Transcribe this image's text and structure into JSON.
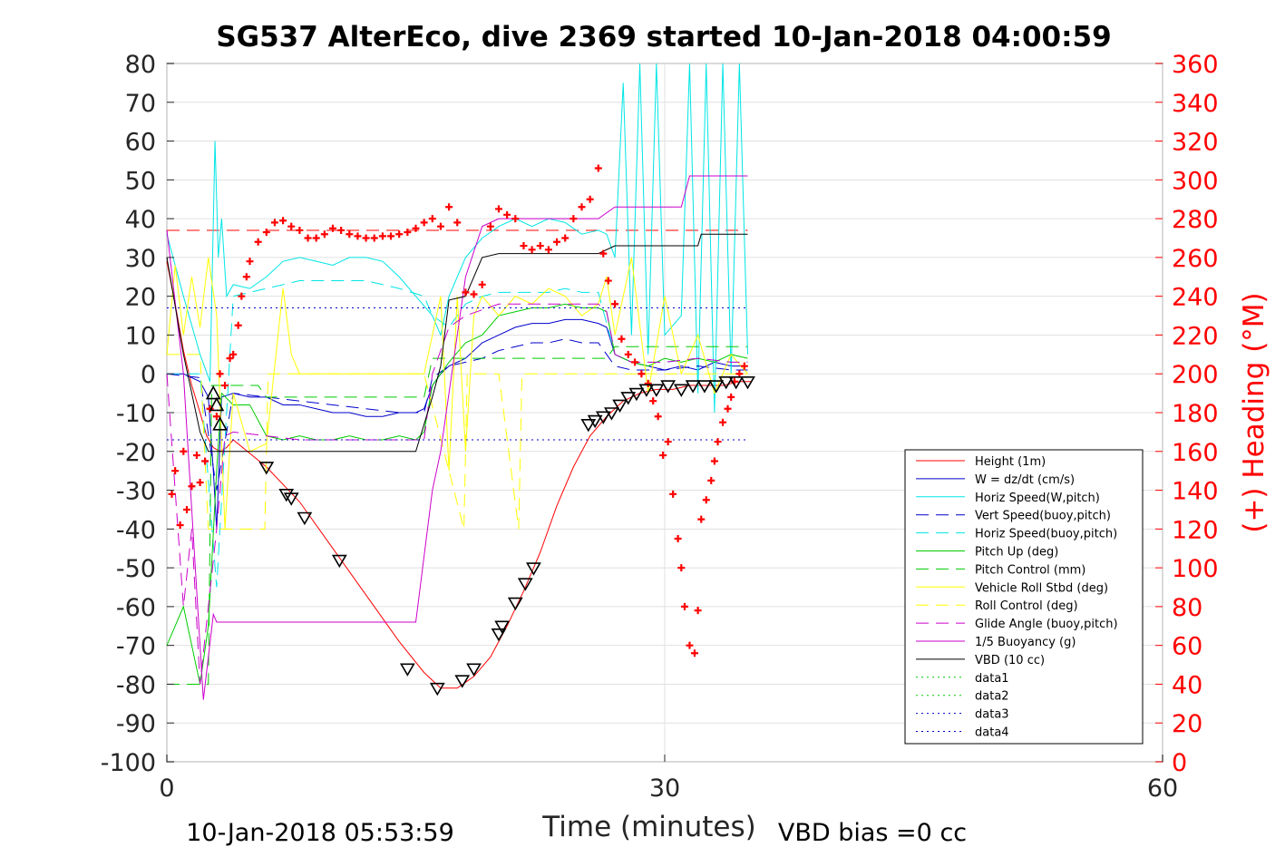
{
  "chart_data": {
    "type": "line",
    "title": "SG537 AlterEco, dive 2369 started 10-Jan-2018 04:00:59",
    "xlabel": "Time (minutes)",
    "ylabel_right": "(+) Heading (°M)",
    "footer_left": "10-Jan-2018 05:53:59",
    "footer_right": "VBD bias =0 cc",
    "xlim": [
      0,
      60
    ],
    "ylim": [
      -100,
      80
    ],
    "ylim_right": [
      0,
      360
    ],
    "x_ticks": [
      "0",
      "30",
      "60"
    ],
    "y_ticks": [
      "80",
      "70",
      "60",
      "50",
      "40",
      "30",
      "20",
      "10",
      "0",
      "-10",
      "-20",
      "-30",
      "-40",
      "-50",
      "-60",
      "-70",
      "-80",
      "-90",
      "-100"
    ],
    "y_right_ticks": [
      "360",
      "340",
      "320",
      "300",
      "280",
      "260",
      "240",
      "220",
      "200",
      "180",
      "160",
      "140",
      "120",
      "100",
      "80",
      "60",
      "40",
      "20",
      "0"
    ],
    "grid": true,
    "legend_position": "lower-right",
    "colors": {
      "height": "#ff0000",
      "w": "#0000cc",
      "horiz": "#00e5e5",
      "vert_buoy": "#0000cc",
      "horiz_buoy": "#00e5e5",
      "pitch_up": "#00cc00",
      "pitch_ctrl": "#00cc00",
      "roll": "#ffff00",
      "roll_ctrl": "#ffff00",
      "glide": "#cc00cc",
      "buoyancy": "#cc00cc",
      "vbd": "#000000",
      "data1": "#00cc00",
      "data2": "#00cc00",
      "data3": "#0000cc",
      "data4": "#0000cc",
      "heading": "#ff0000"
    },
    "series": [
      {
        "name": "Height (1m)",
        "key": "height",
        "style": "solid",
        "x": [
          0,
          0.5,
          1.0,
          1.5,
          2.0,
          2.4,
          2.8,
          3.2,
          3.6,
          4,
          6,
          8,
          10,
          12,
          14,
          15.5,
          16.5,
          17.5,
          18.5,
          19.5,
          20.5,
          21.5,
          22.5,
          23.5,
          24.5,
          25.5,
          26.5,
          27.5,
          28.5,
          29.5,
          30.5,
          31.5,
          32.5,
          33.5,
          34.5,
          35.2
        ],
        "y": [
          29,
          18,
          6,
          -3,
          -10,
          -16,
          -19,
          -20,
          -19,
          -17,
          -24,
          -33,
          -45,
          -57,
          -69,
          -77,
          -81,
          -81,
          -78,
          -73,
          -65,
          -56,
          -46,
          -34,
          -24,
          -16,
          -11,
          -7,
          -5,
          -4,
          -4,
          -3,
          -3,
          -3,
          -2,
          -2
        ]
      },
      {
        "name": "W = dz/dt (cm/s)",
        "key": "w",
        "style": "solid",
        "x": [
          0,
          1,
          2,
          2.5,
          2.8,
          3.0,
          3.3,
          4,
          5,
          6,
          7,
          8,
          9,
          10,
          11,
          12,
          13,
          14,
          15,
          15.5,
          16,
          16.5,
          17,
          17.5,
          18,
          19,
          20,
          21,
          22,
          23,
          24,
          25,
          26,
          26.5,
          27,
          28,
          29,
          30,
          31,
          32,
          33,
          34,
          35
        ],
        "y": [
          0,
          0,
          -2,
          -6,
          -25,
          -40,
          -6,
          -5,
          -6,
          -6,
          -8,
          -8,
          -9,
          -10,
          -10,
          -11,
          -11,
          -10,
          -10,
          -9,
          -3,
          0,
          2,
          3,
          4,
          8,
          10,
          12,
          13,
          13,
          14,
          14,
          13,
          12,
          5,
          3,
          2,
          1,
          2,
          1,
          3,
          2,
          2
        ]
      },
      {
        "name": "Horiz Speed(W,pitch)",
        "key": "horiz",
        "style": "solid",
        "x": [
          0,
          1,
          2,
          2.6,
          2.9,
          3.1,
          3.3,
          3.6,
          4,
          5,
          6,
          7,
          8,
          9,
          10,
          11,
          12,
          13,
          14,
          15,
          16,
          16.5,
          17,
          18,
          19,
          20,
          21,
          22,
          23,
          24,
          25,
          26,
          26.5,
          27,
          27.5,
          28,
          28.5,
          29,
          29.5,
          30,
          31,
          31.5,
          32,
          32.5,
          33,
          33.5,
          34,
          34.5,
          35
        ],
        "y": [
          36,
          20,
          5,
          -2,
          60,
          30,
          40,
          20,
          23,
          22,
          25,
          29,
          30,
          29,
          28,
          30,
          30,
          29,
          25,
          20,
          15,
          10,
          20,
          30,
          35,
          38,
          40,
          38,
          40,
          39,
          36,
          37,
          36,
          30,
          75,
          10,
          80,
          5,
          80,
          10,
          15,
          80,
          -5,
          80,
          -10,
          80,
          0,
          80,
          5
        ]
      },
      {
        "name": "Vert Speed(buoy,pitch)",
        "key": "vert_buoy",
        "style": "dashed",
        "x": [
          0,
          2,
          3,
          4,
          6,
          8,
          10,
          12,
          14,
          15.5,
          16,
          17,
          18,
          19,
          20,
          21,
          22,
          23,
          24,
          25,
          26,
          27,
          28,
          30,
          32,
          34,
          35
        ],
        "y": [
          0,
          -1,
          -30,
          -5,
          -6,
          -7,
          -8,
          -9,
          -10,
          -10,
          -1,
          2,
          3,
          4,
          6,
          7,
          8,
          8,
          9,
          8,
          8,
          2,
          1,
          1,
          2,
          1,
          1
        ]
      },
      {
        "name": "Horiz Speed(buoy,pitch)",
        "key": "horiz_buoy",
        "style": "dashed",
        "x": [
          0,
          2,
          3,
          4,
          6,
          8,
          10,
          12,
          14,
          15.5,
          16,
          17,
          18,
          19,
          20,
          21,
          22,
          23,
          24,
          25,
          26,
          27,
          28,
          30,
          32,
          34,
          35
        ],
        "y": [
          0,
          0,
          -55,
          20,
          22,
          24,
          24,
          24,
          22,
          20,
          15,
          12,
          18,
          20,
          21,
          21,
          21,
          21,
          22,
          21,
          21,
          5,
          3,
          3,
          4,
          3,
          3
        ]
      },
      {
        "name": "Pitch Up (deg)",
        "key": "pitch_up",
        "style": "solid",
        "x": [
          0,
          1,
          2,
          2.5,
          3.0,
          3.3,
          4,
          5,
          6,
          7,
          8,
          9,
          10,
          11,
          12,
          13,
          14,
          15,
          15.5,
          16,
          16.5,
          17,
          18,
          19,
          20,
          21,
          22,
          23,
          24,
          25,
          26,
          26.5,
          27,
          28,
          29,
          30,
          31,
          32,
          33,
          34,
          35
        ],
        "y": [
          -70,
          -60,
          -80,
          -65,
          -25,
          -5,
          -8,
          -8,
          -16,
          -17,
          -16,
          -17,
          -17,
          -16,
          -17,
          -17,
          -16,
          -17,
          -15,
          -3,
          0,
          3,
          8,
          10,
          15,
          16,
          17,
          17,
          18,
          17,
          17,
          16,
          5,
          3,
          2,
          4,
          3,
          4,
          3,
          5,
          4
        ]
      },
      {
        "name": "Pitch Control (mm)",
        "key": "pitch_ctrl",
        "style": "dashed",
        "x": [
          0,
          2.5,
          2.7,
          4,
          5.5,
          6,
          8,
          10,
          12,
          14,
          15.5,
          16,
          18,
          20,
          21,
          26.5,
          27,
          30,
          35
        ],
        "y": [
          -80,
          -80,
          -3,
          -3,
          -3,
          -6,
          -6,
          -6,
          -6,
          -6,
          -6,
          4,
          4,
          4,
          4,
          4,
          7,
          7,
          7
        ]
      },
      {
        "name": "Vehicle Roll Stbd (deg)",
        "key": "roll",
        "style": "solid",
        "x": [
          0,
          0.5,
          1,
          1.5,
          2,
          2.5,
          3,
          3.5,
          4,
          5,
          6,
          7,
          7.5,
          8,
          8.5,
          9,
          10,
          12,
          14,
          15.5,
          16,
          16.5,
          17,
          17.5,
          18,
          18.5,
          19,
          20,
          21,
          22,
          23,
          24,
          25,
          26,
          26.5,
          27,
          28,
          29,
          30,
          31,
          32,
          33,
          34,
          35
        ],
        "y": [
          5,
          28,
          10,
          25,
          12,
          30,
          15,
          -40,
          -5,
          -20,
          -18,
          22,
          5,
          0,
          0,
          0,
          0,
          0,
          0,
          0,
          10,
          20,
          -25,
          20,
          -20,
          15,
          20,
          15,
          20,
          18,
          22,
          20,
          15,
          18,
          25,
          10,
          30,
          -5,
          20,
          0,
          10,
          -5,
          5,
          0
        ]
      },
      {
        "name": "Roll Control (deg)",
        "key": "roll_ctrl",
        "style": "dashed",
        "x": [
          0,
          2,
          2.5,
          3,
          4,
          5,
          5.9,
          6.1,
          7,
          8,
          10,
          12,
          14,
          15.5,
          17.9,
          18.1,
          20,
          21.2,
          21.4,
          22,
          24,
          26,
          28,
          30,
          32,
          34,
          35
        ],
        "y": [
          5,
          5,
          -40,
          -40,
          -40,
          -40,
          -40,
          0,
          0,
          0,
          0,
          0,
          0,
          0,
          -40,
          0,
          0,
          -40,
          0,
          0,
          0,
          0,
          0,
          0,
          0,
          0,
          0
        ]
      },
      {
        "name": "Glide Angle (buoy,pitch)",
        "key": "glide",
        "style": "dashed",
        "x": [
          0,
          1,
          1.5,
          2,
          2.5,
          3,
          3.5,
          4,
          6,
          8,
          10,
          12,
          14,
          15.5,
          16,
          17,
          18,
          20,
          22,
          24,
          26,
          26.5,
          27,
          28,
          30,
          32,
          34,
          35
        ],
        "y": [
          0,
          -60,
          -40,
          -80,
          -60,
          -40,
          -16,
          -15,
          -16,
          -17,
          -17,
          -17,
          -17,
          -17,
          0,
          12,
          15,
          18,
          18,
          18,
          18,
          16,
          5,
          3,
          3,
          4,
          3,
          3
        ]
      },
      {
        "name": "1/5 Buoyancy (g)",
        "key": "buoyancy",
        "style": "solid",
        "x": [
          0,
          1,
          2,
          2.2,
          2.8,
          3.0,
          5,
          10,
          14,
          15,
          16,
          16.5,
          17,
          17.5,
          18,
          19,
          20,
          22,
          24,
          26,
          27,
          28,
          30,
          31,
          31.5,
          32,
          33,
          34,
          35
        ],
        "y": [
          37,
          0,
          -70,
          -84,
          -62,
          -64,
          -64,
          -64,
          -64,
          -64,
          -30,
          -20,
          -5,
          10,
          25,
          38,
          40,
          40,
          40,
          40,
          43,
          43,
          43,
          43,
          51,
          51,
          51,
          51,
          51
        ]
      },
      {
        "name": "VBD (10 cc)",
        "key": "vbd",
        "style": "solid",
        "x": [
          0,
          1,
          2,
          2.5,
          4,
          6,
          10,
          14,
          15,
          16,
          16.5,
          17,
          18,
          19,
          20,
          24,
          26,
          27,
          28,
          30,
          31,
          32,
          32.2,
          33,
          35
        ],
        "y": [
          30,
          5,
          -15,
          -20,
          -20,
          -20,
          -20,
          -20,
          -20,
          -6,
          2,
          19,
          20,
          30,
          31,
          31,
          31,
          33,
          33,
          33,
          33,
          33,
          36,
          36,
          36
        ]
      },
      {
        "name": "data1",
        "key": "data1",
        "style": "dotted",
        "x": [],
        "y": []
      },
      {
        "name": "data2",
        "key": "data2",
        "style": "dotted",
        "x": [],
        "y": []
      },
      {
        "name": "data3",
        "key": "data3",
        "style": "dotted",
        "x": [
          0,
          35
        ],
        "y": [
          17,
          17
        ]
      },
      {
        "name": "data4",
        "key": "data4",
        "style": "dotted",
        "x": [
          0,
          35
        ],
        "y": [
          -17,
          -17
        ]
      }
    ],
    "reference_lines": [
      {
        "key": "height",
        "style": "dashed",
        "x": [
          0,
          35
        ],
        "y": [
          37,
          37
        ]
      }
    ],
    "triangles": {
      "x": [
        2.8,
        3.0,
        3.2,
        6.0,
        7.2,
        7.5,
        8.3,
        10.4,
        14.5,
        16.3,
        17.8,
        18.5,
        20.0,
        20.2,
        21.0,
        21.6,
        22.1,
        25.4,
        25.8,
        26.3,
        26.8,
        27.3,
        27.8,
        28.3,
        28.9,
        29.5,
        30.2,
        31.0,
        31.7,
        32.4,
        33.1,
        33.7,
        34.3,
        35.0
      ],
      "y": [
        -5,
        -8,
        -13,
        -24,
        -31,
        -32,
        -37,
        -48,
        -76,
        -81,
        -79,
        -76,
        -67,
        -65,
        -59,
        -54,
        -50,
        -13,
        -12,
        -11,
        -10,
        -8,
        -6,
        -5,
        -4,
        -4,
        -3,
        -4,
        -3,
        -3,
        -3,
        -2,
        -2,
        -2
      ]
    },
    "heading": {
      "name": "(+) Heading (°M)",
      "x": [
        0.3,
        0.5,
        0.8,
        1.0,
        1.2,
        1.5,
        1.8,
        2.0,
        2.3,
        2.6,
        3.0,
        3.2,
        3.5,
        3.8,
        4.0,
        4.3,
        4.5,
        4.8,
        5.0,
        5.5,
        6.0,
        6.5,
        7.0,
        7.5,
        8.0,
        8.5,
        9.0,
        9.5,
        10.0,
        10.5,
        11.0,
        11.5,
        12.0,
        12.5,
        13.0,
        13.5,
        14.0,
        14.5,
        15.0,
        15.5,
        16.0,
        16.5,
        17.0,
        17.5,
        18.0,
        18.5,
        19.0,
        19.5,
        20.0,
        20.5,
        21.0,
        21.5,
        22.0,
        22.5,
        23.0,
        23.5,
        24.0,
        24.5,
        25.0,
        25.5,
        26.0,
        26.3,
        26.6,
        27.0,
        27.4,
        27.8,
        28.2,
        28.6,
        29.0,
        29.3,
        29.6,
        29.9,
        30.2,
        30.5,
        30.8,
        31.0,
        31.2,
        31.5,
        31.8,
        32.0,
        32.2,
        32.5,
        32.8,
        33.0,
        33.2,
        33.5,
        33.8,
        34.0,
        34.2,
        34.5,
        34.8
      ],
      "y": [
        138,
        150,
        122,
        160,
        130,
        142,
        158,
        144,
        155,
        182,
        178,
        200,
        194,
        208,
        210,
        225,
        240,
        250,
        258,
        268,
        273,
        278,
        279,
        276,
        274,
        270,
        270,
        272,
        275,
        274,
        272,
        271,
        270,
        270,
        271,
        271,
        272,
        273,
        275,
        278,
        280,
        276,
        286,
        278,
        242,
        241,
        246,
        276,
        285,
        282,
        280,
        266,
        264,
        266,
        264,
        268,
        270,
        280,
        286,
        290,
        306,
        262,
        248,
        236,
        218,
        210,
        206,
        200,
        195,
        186,
        178,
        158,
        165,
        138,
        115,
        100,
        80,
        60,
        56,
        78,
        125,
        135,
        145,
        155,
        165,
        175,
        182,
        188,
        196,
        200,
        204
      ]
    }
  }
}
